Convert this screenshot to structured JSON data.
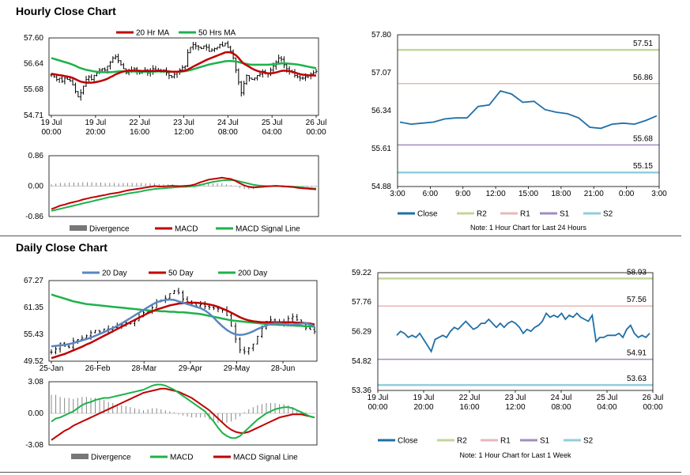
{
  "sections": {
    "hourly_title": "Hourly Close Chart",
    "daily_title": "Daily Close Chart"
  },
  "colors": {
    "c20": "#C00000",
    "c50": "#1DB24B",
    "c200": "#1DB24B",
    "c20d": "#5A86C0",
    "bar": "#000000",
    "div": "#888888",
    "close": "#1F6FA8",
    "r2": "#C3D69B",
    "r1": "#E6B9B8",
    "s1": "#A08CC0",
    "s2": "#93CDDD"
  },
  "chart_data": [
    {
      "id": "hourly_price",
      "type": "ohlc+line",
      "title": "Hourly Close Chart",
      "legend": [
        "20 Hr MA",
        "50 Hrs MA"
      ],
      "ylim": [
        54.71,
        57.6
      ],
      "yticks": [
        "57.60",
        "56.64",
        "55.68",
        "54.71"
      ],
      "xticks": [
        [
          "19 Jul",
          "00:00"
        ],
        [
          "19 Jul",
          "20:00"
        ],
        [
          "22 Jul",
          "16:00"
        ],
        [
          "23 Jul",
          "12:00"
        ],
        [
          "24 Jul",
          "08:00"
        ],
        [
          "25 Jul",
          "04:00"
        ],
        [
          "26 Jul",
          "00:00"
        ]
      ],
      "close": [
        56.22,
        56.15,
        56.05,
        56.1,
        55.98,
        56.1,
        56.05,
        56.0,
        55.85,
        55.6,
        55.4,
        55.55,
        55.8,
        56.05,
        56.15,
        56.05,
        56.2,
        56.3,
        56.4,
        56.45,
        56.4,
        56.55,
        56.7,
        56.85,
        56.9,
        56.75,
        56.6,
        56.45,
        56.3,
        56.35,
        56.4,
        56.45,
        56.35,
        56.3,
        56.35,
        56.4,
        56.3,
        56.35,
        56.45,
        56.4,
        56.4,
        56.35,
        56.4,
        56.3,
        56.2,
        56.15,
        56.25,
        56.35,
        56.4,
        56.5,
        56.55,
        57.05,
        57.25,
        57.35,
        57.3,
        57.25,
        57.2,
        57.3,
        57.25,
        57.1,
        57.15,
        57.2,
        57.25,
        57.35,
        57.3,
        57.4,
        57.25,
        57.1,
        56.85,
        56.4,
        55.95,
        55.55,
        55.9,
        56.2,
        56.1,
        56.05,
        56.1,
        56.2,
        56.25,
        56.35,
        56.3,
        56.25,
        56.4,
        56.55,
        56.7,
        56.85,
        56.8,
        56.6,
        56.45,
        56.35,
        56.3,
        56.2,
        56.15,
        56.1,
        56.1,
        56.15,
        56.2,
        56.25,
        56.3,
        56.35
      ],
      "ma20": [
        56.26,
        56.25,
        56.23,
        56.21,
        56.2,
        56.18,
        56.16,
        56.14,
        56.11,
        56.06,
        56.01,
        55.97,
        55.95,
        55.93,
        55.93,
        55.93,
        55.94,
        55.96,
        55.98,
        56.01,
        56.04,
        56.08,
        56.13,
        56.18,
        56.24,
        56.28,
        56.32,
        56.35,
        56.37,
        56.38,
        56.38,
        56.38,
        56.38,
        56.37,
        56.37,
        56.37,
        56.37,
        56.37,
        56.37,
        56.37,
        56.37,
        56.37,
        56.37,
        56.36,
        56.35,
        56.34,
        56.34,
        56.34,
        56.35,
        56.36,
        56.38,
        56.42,
        56.47,
        56.53,
        56.58,
        56.63,
        56.68,
        56.73,
        56.78,
        56.82,
        56.86,
        56.9,
        56.94,
        56.98,
        57.02,
        57.06,
        57.07,
        57.06,
        57.02,
        56.95,
        56.85,
        56.73,
        56.64,
        56.58,
        56.52,
        56.46,
        56.41,
        56.37,
        56.34,
        56.32,
        56.3,
        56.28,
        56.28,
        56.29,
        56.31,
        56.34,
        56.37,
        56.38,
        56.37,
        56.36,
        56.34,
        56.31,
        56.28,
        56.25,
        56.23,
        56.22,
        56.21,
        56.2,
        56.2,
        56.2
      ],
      "ma50": [
        56.85,
        56.82,
        56.79,
        56.76,
        56.73,
        56.7,
        56.67,
        56.64,
        56.6,
        56.56,
        56.51,
        56.47,
        56.44,
        56.41,
        56.39,
        56.37,
        56.35,
        56.34,
        56.33,
        56.32,
        56.32,
        56.32,
        56.32,
        56.33,
        56.34,
        56.35,
        56.35,
        56.35,
        56.35,
        56.35,
        56.35,
        56.35,
        56.34,
        56.34,
        56.34,
        56.34,
        56.34,
        56.34,
        56.34,
        56.35,
        56.35,
        56.35,
        56.35,
        56.35,
        56.34,
        56.34,
        56.34,
        56.34,
        56.34,
        56.35,
        56.36,
        56.38,
        56.4,
        56.43,
        56.46,
        56.49,
        56.52,
        56.55,
        56.58,
        56.61,
        56.63,
        56.65,
        56.67,
        56.69,
        56.71,
        56.73,
        56.74,
        56.74,
        56.73,
        56.72,
        56.7,
        56.67,
        56.65,
        56.63,
        56.61,
        56.6,
        56.6,
        56.6,
        56.6,
        56.6,
        56.6,
        56.6,
        56.61,
        56.62,
        56.63,
        56.64,
        56.65,
        56.65,
        56.65,
        56.64,
        56.63,
        56.62,
        56.61,
        56.59,
        56.57,
        56.55,
        56.53,
        56.51,
        56.49,
        56.47
      ]
    },
    {
      "id": "hourly_macd",
      "type": "macd",
      "legend": [
        "Divergence",
        "MACD",
        "MACD Signal Line"
      ],
      "ylim": [
        -0.86,
        0.86
      ],
      "yticks": [
        "0.86",
        "0.00",
        "-0.86"
      ],
      "macd": [
        -0.65,
        -0.6,
        -0.55,
        -0.52,
        -0.48,
        -0.45,
        -0.42,
        -0.38,
        -0.35,
        -0.32,
        -0.3,
        -0.27,
        -0.25,
        -0.22,
        -0.2,
        -0.18,
        -0.15,
        -0.12,
        -0.1,
        -0.08,
        -0.06,
        -0.04,
        -0.02,
        0.0,
        -0.01,
        -0.01,
        0.0,
        0.01,
        0.0,
        0.0,
        0.01,
        0.02,
        0.05,
        0.1,
        0.14,
        0.18,
        0.2,
        0.22,
        0.24,
        0.22,
        0.2,
        0.15,
        0.08,
        0.02,
        -0.02,
        -0.04,
        -0.03,
        -0.02,
        -0.01,
        0.0,
        0.01,
        0.0,
        -0.01,
        -0.02,
        -0.03,
        -0.05,
        -0.06,
        -0.07,
        -0.08,
        -0.09
      ],
      "signal": [
        -0.7,
        -0.67,
        -0.64,
        -0.61,
        -0.58,
        -0.55,
        -0.52,
        -0.49,
        -0.46,
        -0.43,
        -0.4,
        -0.37,
        -0.34,
        -0.31,
        -0.29,
        -0.26,
        -0.24,
        -0.21,
        -0.19,
        -0.17,
        -0.15,
        -0.12,
        -0.1,
        -0.08,
        -0.07,
        -0.06,
        -0.05,
        -0.04,
        -0.03,
        -0.02,
        -0.02,
        -0.01,
        0.0,
        0.03,
        0.06,
        0.09,
        0.12,
        0.14,
        0.16,
        0.17,
        0.17,
        0.16,
        0.13,
        0.1,
        0.07,
        0.04,
        0.02,
        0.01,
        0.0,
        0.0,
        0.0,
        0.0,
        -0.01,
        -0.01,
        -0.02,
        -0.03,
        -0.04,
        -0.05,
        -0.06,
        -0.07
      ]
    },
    {
      "id": "hourly_close",
      "type": "line",
      "note": "Note: 1 Hour Chart for Last 24 Hours",
      "legend": [
        "Close",
        "R2",
        "R1",
        "S1",
        "S2"
      ],
      "ylim": [
        54.88,
        57.8
      ],
      "yticks": [
        "57.80",
        "57.07",
        "56.34",
        "55.61",
        "54.88"
      ],
      "xticks": [
        "3:00",
        "6:00",
        "9:00",
        "12:00",
        "15:00",
        "18:00",
        "21:00",
        "0:00",
        "3:00"
      ],
      "levels": {
        "R2": 57.51,
        "R1": 56.86,
        "S1": 55.68,
        "S2": 55.15
      },
      "level_labels": {
        "R2": "57.51",
        "R1": "56.86",
        "S1": "55.68",
        "S2": "55.15"
      },
      "close": [
        56.12,
        56.08,
        56.1,
        56.12,
        56.18,
        56.2,
        56.2,
        56.42,
        56.45,
        56.72,
        56.66,
        56.5,
        56.52,
        56.36,
        56.31,
        56.28,
        56.2,
        56.02,
        56.0,
        56.08,
        56.1,
        56.08,
        56.15,
        56.24
      ]
    },
    {
      "id": "daily_price",
      "type": "ohlc+line",
      "title": "Daily Close Chart",
      "legend": [
        "20 Day",
        "50 Day",
        "200 Day"
      ],
      "ylim": [
        49.52,
        67.27
      ],
      "yticks": [
        "67.27",
        "61.35",
        "55.43",
        "49.52"
      ],
      "xticks": [
        "25-Jan",
        "26-Feb",
        "28-Mar",
        "29-Apr",
        "29-May",
        "28-Jun"
      ],
      "close": [
        51.5,
        52.2,
        53.5,
        52.8,
        52.6,
        54.0,
        54.3,
        54.6,
        55.1,
        55.8,
        56.3,
        56.0,
        56.6,
        56.5,
        56.9,
        57.2,
        57.6,
        58.0,
        57.8,
        58.4,
        59.3,
        60.2,
        60.5,
        61.3,
        62.6,
        62.9,
        63.4,
        64.4,
        65.0,
        64.6,
        63.2,
        62.6,
        62.2,
        61.7,
        62.0,
        61.6,
        61.4,
        61.2,
        61.0,
        60.8,
        59.6,
        57.2,
        54.4,
        52.0,
        51.6,
        52.4,
        53.3,
        55.0,
        56.8,
        58.3,
        58.6,
        58.0,
        57.6,
        58.2,
        58.9,
        59.3,
        58.6,
        57.7,
        56.8,
        56.5,
        56.0
      ],
      "ma20": [
        52.8,
        52.9,
        53.0,
        53.1,
        53.3,
        53.5,
        53.8,
        54.1,
        54.4,
        54.7,
        55.1,
        55.5,
        55.9,
        56.4,
        56.8,
        57.3,
        57.8,
        58.4,
        59.0,
        59.6,
        60.2,
        60.8,
        61.4,
        62.0,
        62.5,
        62.8,
        63.0,
        63.1,
        63.0,
        62.7,
        62.4,
        62.1,
        61.8,
        61.5,
        61.2,
        60.7,
        60.0,
        59.1,
        58.1,
        57.2,
        56.4,
        55.8,
        55.4,
        55.3,
        55.4,
        55.7,
        56.1,
        56.6,
        57.0,
        57.4,
        57.7,
        57.8,
        57.8,
        57.7,
        57.6,
        57.6,
        57.7,
        57.8,
        57.9,
        57.6,
        57.2
      ],
      "ma50": [
        50.2,
        50.5,
        50.8,
        51.1,
        51.5,
        51.9,
        52.3,
        52.7,
        53.2,
        53.6,
        54.1,
        54.6,
        55.1,
        55.6,
        56.1,
        56.6,
        57.1,
        57.6,
        58.1,
        58.6,
        59.1,
        59.6,
        60.1,
        60.5,
        60.9,
        61.2,
        61.5,
        61.8,
        62.0,
        62.2,
        62.3,
        62.4,
        62.4,
        62.4,
        62.3,
        62.2,
        62.0,
        61.8,
        61.5,
        61.1,
        60.7,
        60.2,
        59.7,
        59.2,
        58.8,
        58.5,
        58.3,
        58.2,
        58.1,
        58.1,
        58.1,
        58.1,
        58.1,
        58.1,
        58.1,
        58.1,
        58.0,
        58.0,
        57.9,
        57.8,
        57.6
      ],
      "ma200": [
        64.2,
        63.9,
        63.6,
        63.3,
        63.0,
        62.7,
        62.5,
        62.3,
        62.1,
        62.0,
        61.9,
        61.8,
        61.7,
        61.6,
        61.5,
        61.4,
        61.3,
        61.2,
        61.1,
        61.0,
        60.9,
        60.8,
        60.7,
        60.6,
        60.6,
        60.5,
        60.5,
        60.4,
        60.4,
        60.3,
        60.3,
        60.2,
        60.1,
        60.0,
        59.9,
        59.7,
        59.5,
        59.3,
        59.1,
        58.9,
        58.7,
        58.5,
        58.4,
        58.3,
        58.2,
        58.1,
        58.0,
        57.9,
        57.8,
        57.7,
        57.6,
        57.6,
        57.5,
        57.5,
        57.4,
        57.4,
        57.3,
        57.3,
        57.2,
        57.2,
        57.1
      ]
    },
    {
      "id": "daily_macd",
      "type": "macd",
      "legend": [
        "Divergence",
        "MACD",
        "MACD Signal Line"
      ],
      "ylim": [
        -3.08,
        3.08
      ],
      "yticks": [
        "3.08",
        "0.00",
        "-3.08"
      ],
      "macd": [
        -0.8,
        -0.5,
        -0.4,
        -0.2,
        0.0,
        0.2,
        0.5,
        0.8,
        1.0,
        1.1,
        1.3,
        1.4,
        1.5,
        1.5,
        1.6,
        1.7,
        1.8,
        1.9,
        2.0,
        2.1,
        2.2,
        2.3,
        2.5,
        2.7,
        2.8,
        2.8,
        2.7,
        2.5,
        2.3,
        2.0,
        1.7,
        1.4,
        1.1,
        0.8,
        0.5,
        0.2,
        -0.3,
        -0.8,
        -1.4,
        -1.9,
        -2.2,
        -2.4,
        -2.4,
        -2.2,
        -1.8,
        -1.4,
        -1.0,
        -0.6,
        -0.3,
        0.0,
        0.2,
        0.4,
        0.5,
        0.6,
        0.6,
        0.5,
        0.3,
        0.1,
        -0.1,
        -0.3,
        -0.4
      ],
      "signal": [
        -2.6,
        -2.3,
        -2.0,
        -1.7,
        -1.5,
        -1.2,
        -1.0,
        -0.8,
        -0.6,
        -0.4,
        -0.2,
        0.0,
        0.2,
        0.4,
        0.6,
        0.8,
        1.0,
        1.2,
        1.4,
        1.6,
        1.8,
        2.0,
        2.1,
        2.2,
        2.3,
        2.4,
        2.4,
        2.3,
        2.2,
        2.1,
        1.9,
        1.7,
        1.5,
        1.2,
        0.9,
        0.6,
        0.3,
        -0.1,
        -0.5,
        -0.9,
        -1.3,
        -1.6,
        -1.8,
        -1.9,
        -1.9,
        -1.8,
        -1.6,
        -1.4,
        -1.2,
        -1.0,
        -0.8,
        -0.6,
        -0.4,
        -0.3,
        -0.2,
        -0.1,
        -0.1,
        -0.1,
        -0.2,
        -0.3,
        -0.4
      ]
    },
    {
      "id": "daily_close",
      "type": "line",
      "note": "Note: 1 Hour Chart for Last 1 Week",
      "legend": [
        "Close",
        "R2",
        "R1",
        "S1",
        "S2"
      ],
      "ylim": [
        53.36,
        59.22
      ],
      "yticks": [
        "59.22",
        "57.76",
        "56.29",
        "54.82",
        "53.36"
      ],
      "xticks": [
        [
          "19 Jul",
          "00:00"
        ],
        [
          "19 Jul",
          "20:00"
        ],
        [
          "22 Jul",
          "16:00"
        ],
        [
          "23 Jul",
          "12:00"
        ],
        [
          "24 Jul",
          "08:00"
        ],
        [
          "25 Jul",
          "04:00"
        ],
        [
          "26 Jul",
          "00:00"
        ]
      ],
      "levels": {
        "R2": 58.93,
        "R1": 57.56,
        "S1": 54.91,
        "S2": 53.63
      },
      "level_labels": {
        "R2": "58.93",
        "R1": "57.56",
        "S1": "54.91",
        "S2": "53.63"
      },
      "close": [
        56.1,
        56.3,
        56.2,
        56.0,
        56.1,
        56.0,
        56.2,
        55.9,
        55.6,
        55.3,
        55.9,
        56.0,
        56.1,
        56.0,
        56.3,
        56.5,
        56.4,
        56.6,
        56.8,
        56.6,
        56.4,
        56.5,
        56.7,
        56.7,
        56.9,
        56.7,
        56.5,
        56.7,
        56.5,
        56.7,
        56.8,
        56.7,
        56.5,
        56.2,
        56.4,
        56.3,
        56.5,
        56.6,
        56.8,
        57.2,
        57.0,
        57.1,
        57.0,
        57.2,
        56.9,
        57.1,
        57.0,
        57.2,
        57.0,
        56.9,
        56.8,
        57.1,
        55.8,
        56.0,
        56.0,
        56.1,
        56.1,
        56.1,
        56.2,
        56.0,
        56.4,
        56.6,
        56.2,
        56.0,
        56.1,
        56.0,
        56.2
      ]
    }
  ]
}
